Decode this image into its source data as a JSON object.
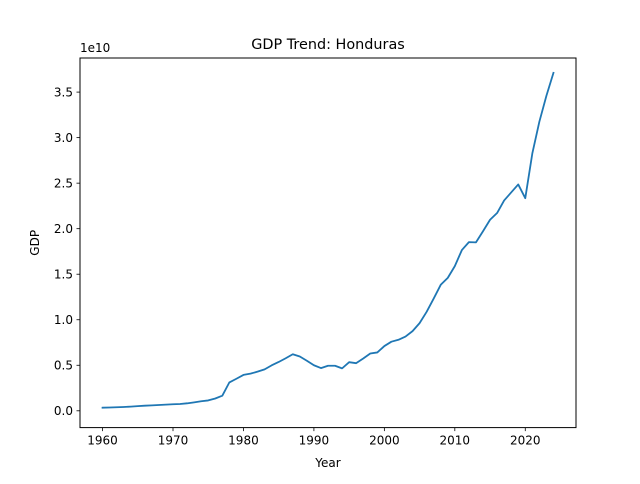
{
  "chart_data": {
    "type": "line",
    "title": "GDP Trend: Honduras",
    "xlabel": "Year",
    "ylabel": "GDP",
    "y_scale_label": "1e10",
    "xlim": [
      1956.8,
      2027.2
    ],
    "ylim": [
      -0.1845,
      3.8745
    ],
    "x_ticks": [
      1960,
      1970,
      1980,
      1990,
      2000,
      2010,
      2020
    ],
    "x_tick_labels": [
      "1960",
      "1970",
      "1980",
      "1990",
      "2000",
      "2010",
      "2020"
    ],
    "y_ticks": [
      0.0,
      0.5,
      1.0,
      1.5,
      2.0,
      2.5,
      3.0,
      3.5
    ],
    "y_tick_labels": [
      "0.0",
      "0.5",
      "1.0",
      "1.5",
      "2.0",
      "2.5",
      "3.0",
      "3.5"
    ],
    "grid": false,
    "series": [
      {
        "color": "#1f77b4",
        "x": [
          1960,
          1961,
          1962,
          1963,
          1964,
          1965,
          1966,
          1967,
          1968,
          1969,
          1970,
          1971,
          1972,
          1973,
          1974,
          1975,
          1976,
          1977,
          1978,
          1979,
          1980,
          1981,
          1982,
          1983,
          1984,
          1985,
          1986,
          1987,
          1988,
          1989,
          1990,
          1991,
          1992,
          1993,
          1994,
          1995,
          1996,
          1997,
          1998,
          1999,
          2000,
          2001,
          2002,
          2003,
          2004,
          2005,
          2006,
          2007,
          2008,
          2009,
          2010,
          2011,
          2012,
          2013,
          2014,
          2015,
          2016,
          2017,
          2018,
          2019,
          2020,
          2021,
          2022,
          2023,
          2024
        ],
        "y": [
          0.034,
          0.036,
          0.039,
          0.042,
          0.046,
          0.051,
          0.056,
          0.06,
          0.064,
          0.068,
          0.072,
          0.075,
          0.082,
          0.093,
          0.105,
          0.114,
          0.135,
          0.166,
          0.312,
          0.352,
          0.394,
          0.408,
          0.43,
          0.455,
          0.499,
          0.536,
          0.577,
          0.621,
          0.596,
          0.55,
          0.5,
          0.469,
          0.495,
          0.495,
          0.466,
          0.534,
          0.523,
          0.574,
          0.629,
          0.641,
          0.711,
          0.759,
          0.78,
          0.815,
          0.875,
          0.963,
          1.087,
          1.233,
          1.384,
          1.46,
          1.589,
          1.765,
          1.852,
          1.85,
          1.972,
          2.098,
          2.172,
          2.31,
          2.398,
          2.486,
          2.335,
          2.826,
          3.175,
          3.46,
          3.711
        ]
      }
    ]
  }
}
